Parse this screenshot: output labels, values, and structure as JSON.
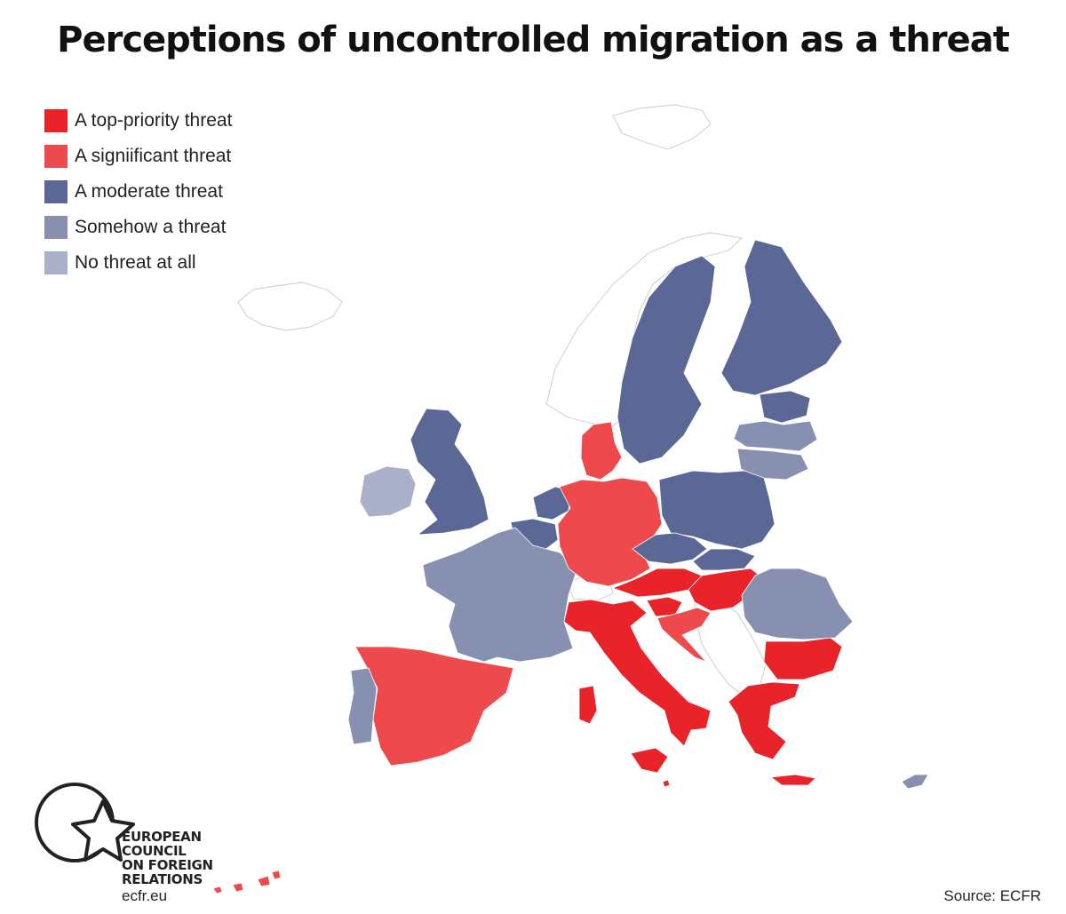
{
  "title": "Perceptions of uncontrolled migration as a threat",
  "legend": [
    {
      "label": "A top-priority threat",
      "color": "#e8232a"
    },
    {
      "label": "A signiificant threat",
      "color": "#ee4a4e"
    },
    {
      "label": "A moderate threat",
      "color": "#5b6895"
    },
    {
      "label": "Somehow a threat",
      "color": "#8790b0"
    },
    {
      "label": "No threat at all",
      "color": "#aab0c7"
    }
  ],
  "countries": [
    {
      "name": "Sweden",
      "category": "A moderate threat"
    },
    {
      "name": "Finland",
      "category": "A moderate threat"
    },
    {
      "name": "Estonia",
      "category": "A moderate threat"
    },
    {
      "name": "Latvia",
      "category": "Somehow a threat"
    },
    {
      "name": "Lithuania",
      "category": "Somehow a threat"
    },
    {
      "name": "United Kingdom",
      "category": "A moderate threat"
    },
    {
      "name": "Ireland",
      "category": "No threat at all"
    },
    {
      "name": "Netherlands",
      "category": "A moderate threat"
    },
    {
      "name": "Belgium",
      "category": "A moderate threat"
    },
    {
      "name": "France",
      "category": "Somehow a threat"
    },
    {
      "name": "Spain",
      "category": "A signiificant threat"
    },
    {
      "name": "Portugal",
      "category": "Somehow a threat"
    },
    {
      "name": "Germany",
      "category": "A signiificant threat"
    },
    {
      "name": "Denmark",
      "category": "A signiificant threat"
    },
    {
      "name": "Poland",
      "category": "A moderate threat"
    },
    {
      "name": "Czech Republic",
      "category": "A moderate threat"
    },
    {
      "name": "Slovakia",
      "category": "A moderate threat"
    },
    {
      "name": "Austria",
      "category": "A top-priority threat"
    },
    {
      "name": "Hungary",
      "category": "A top-priority threat"
    },
    {
      "name": "Slovenia",
      "category": "A top-priority threat"
    },
    {
      "name": "Croatia",
      "category": "A signiificant threat"
    },
    {
      "name": "Italy",
      "category": "A top-priority threat"
    },
    {
      "name": "Malta",
      "category": "A top-priority threat"
    },
    {
      "name": "Romania",
      "category": "Somehow a threat"
    },
    {
      "name": "Bulgaria",
      "category": "A top-priority threat"
    },
    {
      "name": "Greece",
      "category": "A top-priority threat"
    },
    {
      "name": "Cyprus",
      "category": "Somehow a threat"
    }
  ],
  "logo": {
    "lines": [
      "EUROPEAN",
      "COUNCIL",
      "ON FOREIGN",
      "RELATIONS"
    ],
    "url": "ecfr.eu",
    "icon": "star-circle-icon"
  },
  "source": "Source: ECFR"
}
